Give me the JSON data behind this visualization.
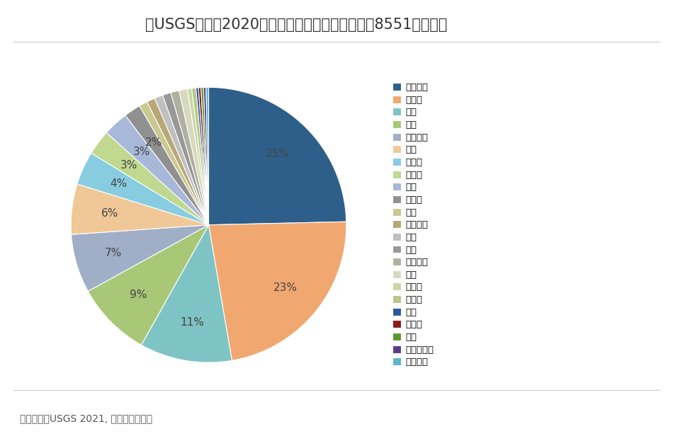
{
  "title": "据USGS数据，2020年全球已探明的锂资源量达到8551万金属吨",
  "source": "资料来源：USGS 2021, 五矿证券研究所",
  "labels": [
    "玻利维亚",
    "阿根廷",
    "智利",
    "美国",
    "澳大利亚",
    "中国",
    "刚果金",
    "加拿大",
    "德国",
    "墨西哥",
    "捷克",
    "塞尔维亚",
    "秘鲁",
    "马里",
    "津巴布韦",
    "巴西",
    "西班牙",
    "葡萄牙",
    "加纳",
    "奥地利",
    "芬兰",
    "哈萨克斯坦",
    "纳米比亚"
  ],
  "values": [
    25,
    23,
    11,
    9,
    7,
    6,
    4,
    3,
    3,
    2,
    1,
    1,
    1,
    1,
    1,
    1,
    0.5,
    0.5,
    0.3,
    0.3,
    0.3,
    0.3,
    0.3
  ],
  "colors": [
    "#2e5f8a",
    "#f0a870",
    "#7fc4c4",
    "#a8c878",
    "#a0aec8",
    "#f0c898",
    "#88cce0",
    "#c0d890",
    "#a8b8d8",
    "#909090",
    "#c8c890",
    "#b8a878",
    "#c0c0c0",
    "#989898",
    "#b0b0a0",
    "#d8d8c0",
    "#c8d8a0",
    "#b8c888",
    "#2858a0",
    "#8b1c1c",
    "#5a9a2a",
    "#5a3a8a",
    "#5ab8c8"
  ],
  "background_color": "#ffffff",
  "title_fontsize": 15,
  "legend_fontsize": 9.5,
  "source_fontsize": 10
}
